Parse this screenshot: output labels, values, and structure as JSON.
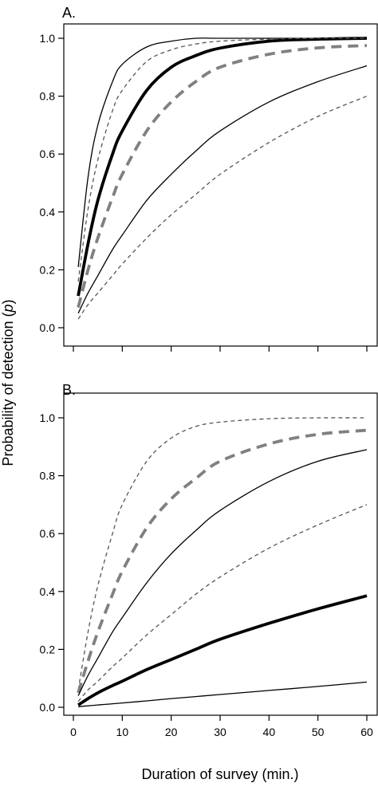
{
  "figure": {
    "ylabel_prefix": "Probability of detection (",
    "ylabel_var": "p",
    "ylabel_suffix": ")",
    "xlabel": "Duration of survey (min.)"
  },
  "chart_data": [
    {
      "type": "line",
      "panel_label": "A.",
      "xlim": [
        0,
        60
      ],
      "ylim": [
        0,
        1
      ],
      "x_ticks": [
        0,
        10,
        20,
        30,
        40,
        50,
        60
      ],
      "x_tick_labels": [],
      "y_ticks": [
        0.0,
        0.2,
        0.4,
        0.6,
        0.8,
        1.0
      ],
      "y_tick_labels": [
        "0.0",
        "0.2",
        "0.4",
        "0.6",
        "0.8",
        "1.0"
      ],
      "series": [
        {
          "x": [
            1,
            3,
            5,
            8,
            10,
            15,
            20,
            25,
            30,
            40,
            50,
            60
          ],
          "y": [
            0.21,
            0.52,
            0.7,
            0.85,
            0.91,
            0.97,
            0.99,
            1.0,
            1.0,
            1.0,
            1.0,
            1.0
          ],
          "color": "#000000",
          "dash": "solid",
          "weight": "thin"
        },
        {
          "x": [
            1,
            3,
            5,
            8,
            10,
            15,
            20,
            25,
            30,
            40,
            50,
            60
          ],
          "y": [
            0.11,
            0.29,
            0.44,
            0.6,
            0.68,
            0.82,
            0.9,
            0.94,
            0.966,
            0.99,
            0.997,
            1.0
          ],
          "color": "#000000",
          "dash": "solid",
          "weight": "bold"
        },
        {
          "x": [
            1,
            3,
            5,
            8,
            10,
            15,
            20,
            25,
            30,
            40,
            50,
            60
          ],
          "y": [
            0.16,
            0.41,
            0.58,
            0.75,
            0.82,
            0.92,
            0.96,
            0.98,
            0.99,
            0.997,
            1.0,
            1.0
          ],
          "color": "#555555",
          "dash": "short",
          "weight": "thin"
        },
        {
          "x": [
            1,
            3,
            5,
            8,
            10,
            15,
            20,
            25,
            30,
            40,
            50,
            60
          ],
          "y": [
            0.07,
            0.2,
            0.31,
            0.45,
            0.53,
            0.68,
            0.78,
            0.85,
            0.9,
            0.945,
            0.967,
            0.975
          ],
          "color": "#808080",
          "dash": "long",
          "weight": "bold"
        },
        {
          "x": [
            1,
            3,
            5,
            8,
            10,
            15,
            20,
            25,
            30,
            40,
            50,
            60
          ],
          "y": [
            0.05,
            0.12,
            0.18,
            0.27,
            0.32,
            0.44,
            0.53,
            0.61,
            0.68,
            0.78,
            0.85,
            0.905
          ],
          "color": "#000000",
          "dash": "solid",
          "weight": "thin"
        },
        {
          "x": [
            1,
            3,
            5,
            8,
            10,
            15,
            20,
            25,
            30,
            40,
            50,
            60
          ],
          "y": [
            0.03,
            0.08,
            0.12,
            0.18,
            0.22,
            0.31,
            0.39,
            0.46,
            0.53,
            0.64,
            0.73,
            0.8
          ],
          "color": "#555555",
          "dash": "short",
          "weight": "thin"
        }
      ]
    },
    {
      "type": "line",
      "panel_label": "B.",
      "xlim": [
        0,
        60
      ],
      "ylim": [
        0,
        1
      ],
      "x_ticks": [
        0,
        10,
        20,
        30,
        40,
        50,
        60
      ],
      "x_tick_labels": [
        "0",
        "10",
        "20",
        "30",
        "40",
        "50",
        "60"
      ],
      "y_ticks": [
        0.0,
        0.2,
        0.4,
        0.6,
        0.8,
        1.0
      ],
      "y_tick_labels": [
        "0.0",
        "0.2",
        "0.4",
        "0.6",
        "0.8",
        "1.0"
      ],
      "series": [
        {
          "x": [
            1,
            3,
            5,
            8,
            10,
            15,
            20,
            25,
            30,
            40,
            50,
            60
          ],
          "y": [
            0.06,
            0.26,
            0.42,
            0.6,
            0.7,
            0.85,
            0.93,
            0.97,
            0.985,
            0.997,
            1.0,
            1.0
          ],
          "color": "#555555",
          "dash": "short",
          "weight": "thin"
        },
        {
          "x": [
            1,
            3,
            5,
            8,
            10,
            15,
            20,
            25,
            30,
            40,
            50,
            60
          ],
          "y": [
            0.05,
            0.16,
            0.26,
            0.39,
            0.47,
            0.62,
            0.72,
            0.79,
            0.85,
            0.91,
            0.943,
            0.957
          ],
          "color": "#808080",
          "dash": "long",
          "weight": "bold"
        },
        {
          "x": [
            1,
            3,
            5,
            8,
            10,
            15,
            20,
            25,
            30,
            40,
            50,
            60
          ],
          "y": [
            0.04,
            0.11,
            0.17,
            0.26,
            0.31,
            0.43,
            0.53,
            0.61,
            0.68,
            0.78,
            0.85,
            0.89
          ],
          "color": "#000000",
          "dash": "solid",
          "weight": "thin"
        },
        {
          "x": [
            1,
            3,
            5,
            8,
            10,
            15,
            20,
            25,
            30,
            40,
            50,
            60
          ],
          "y": [
            0.02,
            0.06,
            0.09,
            0.14,
            0.17,
            0.25,
            0.32,
            0.39,
            0.45,
            0.55,
            0.63,
            0.7
          ],
          "color": "#555555",
          "dash": "short",
          "weight": "thin"
        },
        {
          "x": [
            1,
            3,
            5,
            8,
            10,
            15,
            20,
            25,
            30,
            40,
            50,
            60
          ],
          "y": [
            0.008,
            0.03,
            0.05,
            0.075,
            0.09,
            0.13,
            0.165,
            0.2,
            0.235,
            0.29,
            0.34,
            0.385
          ],
          "color": "#000000",
          "dash": "solid",
          "weight": "bold"
        },
        {
          "x": [
            1,
            3,
            5,
            8,
            10,
            15,
            20,
            25,
            30,
            40,
            50,
            60
          ],
          "y": [
            0.002,
            0.005,
            0.008,
            0.012,
            0.015,
            0.022,
            0.03,
            0.037,
            0.044,
            0.058,
            0.072,
            0.087
          ],
          "color": "#000000",
          "dash": "solid",
          "weight": "thin"
        }
      ]
    }
  ]
}
